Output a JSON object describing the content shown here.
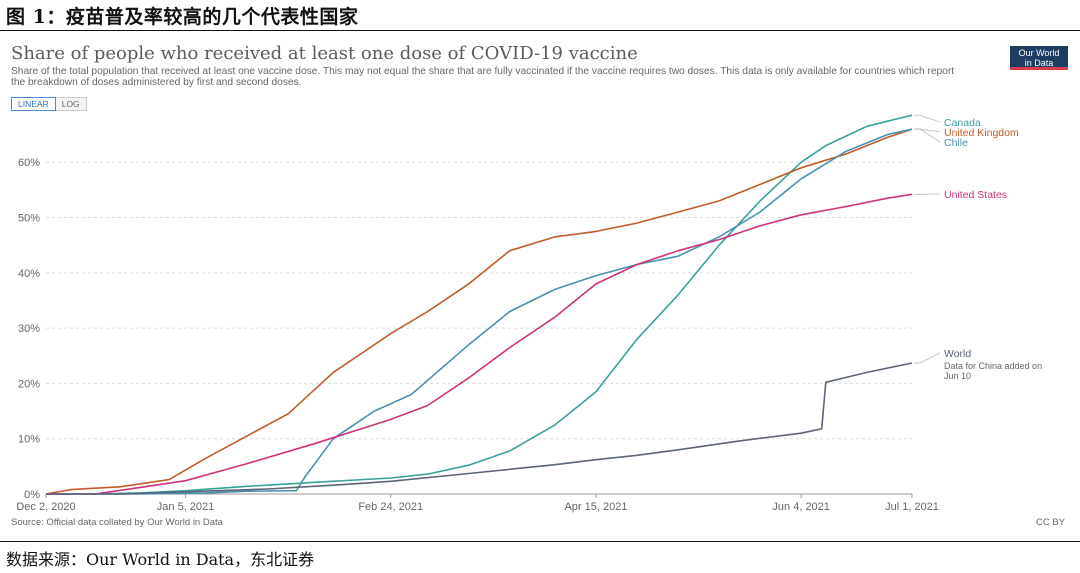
{
  "figure": {
    "title": "图 1：疫苗普及率较高的几个代表性国家",
    "source": "数据来源：Our World in Data，东北证券"
  },
  "chart": {
    "title": "Share of people who received at least one dose of COVID-19 vaccine",
    "subtitle": "Share of the total population that received at least one vaccine dose. This may not equal the share that are fully vaccinated if the vaccine requires two doses. This data is only available for countries which report the breakdown of doses administered by first and second doses.",
    "logo_line1": "Our World",
    "logo_line2": "in Data",
    "toggle_linear": "LINEAR",
    "toggle_log": "LOG",
    "source": "Source: Official data collated by Our World in Data",
    "license": "CC BY",
    "world_note_line1": "Data for China added on",
    "world_note_line2": "Jun 10"
  },
  "colors": {
    "Canada": "#3aa19b",
    "United Kingdom": "#c15c2a",
    "Chile": "#4a90b0",
    "United States": "#d0327a",
    "World": "#5c6478",
    "grid": "#dddddd",
    "axis": "#999999"
  },
  "chart_data": {
    "type": "line",
    "x_ticks": [
      "Dec 2, 2020",
      "Jan 5, 2021",
      "Feb 24, 2021",
      "Apr 15, 2021",
      "Jun 4, 2021",
      "Jul 1, 2021"
    ],
    "y_ticks": [
      "0%",
      "10%",
      "20%",
      "30%",
      "40%",
      "50%",
      "60%"
    ],
    "ylim": [
      0,
      68
    ],
    "xlim": [
      "2020-12-02",
      "2021-07-01"
    ],
    "legend_placement": "right",
    "series": [
      {
        "name": "Canada",
        "points": [
          [
            "2020-12-02",
            0
          ],
          [
            "2020-12-14",
            0
          ],
          [
            "2020-12-25",
            0.2
          ],
          [
            "2021-01-05",
            0.6
          ],
          [
            "2021-01-20",
            1.4
          ],
          [
            "2021-02-05",
            2.1
          ],
          [
            "2021-02-24",
            2.9
          ],
          [
            "2021-03-05",
            3.6
          ],
          [
            "2021-03-15",
            5.2
          ],
          [
            "2021-03-25",
            7.8
          ],
          [
            "2021-04-05",
            12.5
          ],
          [
            "2021-04-15",
            18.5
          ],
          [
            "2021-04-25",
            28
          ],
          [
            "2021-05-05",
            36
          ],
          [
            "2021-05-15",
            45
          ],
          [
            "2021-05-25",
            53
          ],
          [
            "2021-06-04",
            60
          ],
          [
            "2021-06-10",
            63
          ],
          [
            "2021-06-20",
            66.5
          ],
          [
            "2021-07-01",
            68.5
          ]
        ]
      },
      {
        "name": "United Kingdom",
        "points": [
          [
            "2020-12-02",
            0
          ],
          [
            "2020-12-08",
            0.8
          ],
          [
            "2020-12-20",
            1.3
          ],
          [
            "2021-01-01",
            2.6
          ],
          [
            "2021-01-10",
            6.5
          ],
          [
            "2021-01-20",
            10.5
          ],
          [
            "2021-01-30",
            14.5
          ],
          [
            "2021-02-10",
            22
          ],
          [
            "2021-02-24",
            29
          ],
          [
            "2021-03-05",
            33
          ],
          [
            "2021-03-15",
            38
          ],
          [
            "2021-03-25",
            44
          ],
          [
            "2021-04-05",
            46.5
          ],
          [
            "2021-04-15",
            47.5
          ],
          [
            "2021-04-25",
            49
          ],
          [
            "2021-05-05",
            51
          ],
          [
            "2021-05-15",
            53
          ],
          [
            "2021-05-25",
            56
          ],
          [
            "2021-06-04",
            59
          ],
          [
            "2021-06-15",
            61.5
          ],
          [
            "2021-06-25",
            64.5
          ],
          [
            "2021-07-01",
            66
          ]
        ]
      },
      {
        "name": "Chile",
        "points": [
          [
            "2020-12-02",
            0
          ],
          [
            "2020-12-24",
            0
          ],
          [
            "2021-01-10",
            0.2
          ],
          [
            "2021-01-20",
            0.5
          ],
          [
            "2021-02-01",
            0.6
          ],
          [
            "2021-02-03",
            3
          ],
          [
            "2021-02-10",
            10
          ],
          [
            "2021-02-20",
            15
          ],
          [
            "2021-03-01",
            18
          ],
          [
            "2021-03-15",
            27
          ],
          [
            "2021-03-25",
            33
          ],
          [
            "2021-04-05",
            37
          ],
          [
            "2021-04-15",
            39.5
          ],
          [
            "2021-04-25",
            41.5
          ],
          [
            "2021-05-05",
            43
          ],
          [
            "2021-05-15",
            46.5
          ],
          [
            "2021-05-25",
            51
          ],
          [
            "2021-06-04",
            57
          ],
          [
            "2021-06-15",
            62
          ],
          [
            "2021-06-25",
            65
          ],
          [
            "2021-07-01",
            66
          ]
        ]
      },
      {
        "name": "United States",
        "points": [
          [
            "2020-12-02",
            0
          ],
          [
            "2020-12-14",
            0
          ],
          [
            "2020-12-25",
            1.2
          ],
          [
            "2021-01-05",
            2.4
          ],
          [
            "2021-01-20",
            5.5
          ],
          [
            "2021-02-05",
            9
          ],
          [
            "2021-02-24",
            13.5
          ],
          [
            "2021-03-05",
            16
          ],
          [
            "2021-03-15",
            21
          ],
          [
            "2021-03-25",
            26.5
          ],
          [
            "2021-04-05",
            32
          ],
          [
            "2021-04-15",
            38
          ],
          [
            "2021-04-25",
            41.5
          ],
          [
            "2021-05-05",
            44
          ],
          [
            "2021-05-15",
            46
          ],
          [
            "2021-05-25",
            48.5
          ],
          [
            "2021-06-04",
            50.5
          ],
          [
            "2021-06-15",
            52
          ],
          [
            "2021-06-25",
            53.5
          ],
          [
            "2021-07-01",
            54.2
          ]
        ]
      },
      {
        "name": "World",
        "points": [
          [
            "2020-12-02",
            0
          ],
          [
            "2020-12-20",
            0
          ],
          [
            "2021-01-05",
            0.4
          ],
          [
            "2021-01-25",
            0.9
          ],
          [
            "2021-02-10",
            1.6
          ],
          [
            "2021-02-24",
            2.3
          ],
          [
            "2021-03-15",
            3.7
          ],
          [
            "2021-04-05",
            5.3
          ],
          [
            "2021-04-15",
            6.2
          ],
          [
            "2021-04-25",
            7
          ],
          [
            "2021-05-05",
            8
          ],
          [
            "2021-05-20",
            9.6
          ],
          [
            "2021-06-04",
            11
          ],
          [
            "2021-06-09",
            11.8
          ],
          [
            "2021-06-10",
            20.2
          ],
          [
            "2021-06-20",
            22
          ],
          [
            "2021-07-01",
            23.7
          ]
        ]
      }
    ]
  }
}
